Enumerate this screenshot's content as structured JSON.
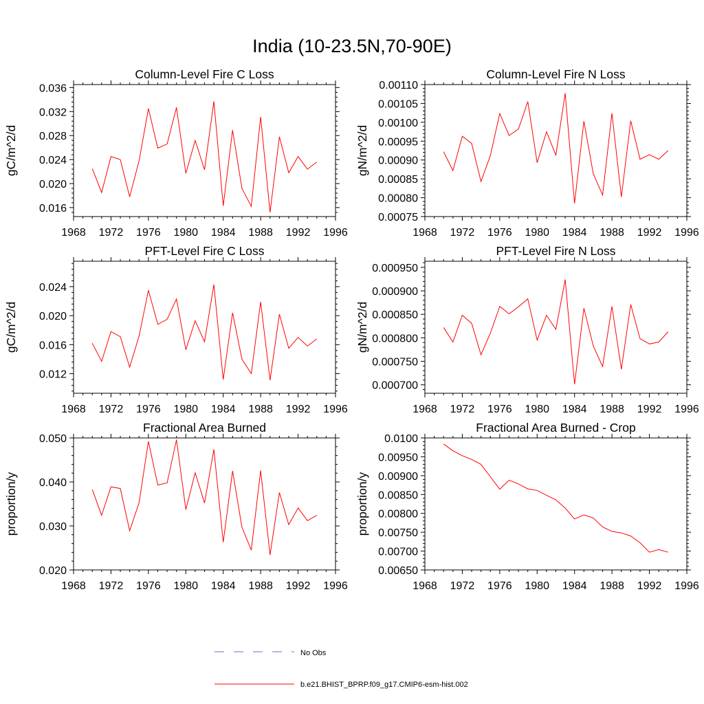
{
  "title": "India (10-23.5N,70-90E)",
  "legend": [
    {
      "label": "No Obs",
      "color": "#6b6bc9",
      "style": "dashed"
    },
    {
      "label": "b.e21.BHIST_BPRP.f09_g17.CMIP6-esm-hist.002",
      "color": "#ff0000",
      "style": "solid"
    }
  ],
  "chart_data": [
    {
      "type": "line",
      "title": "Column-Level Fire C Loss",
      "ylabel": "gC/m^2/d",
      "xlabel": "",
      "xlim": [
        1968,
        1996
      ],
      "ylim": [
        0.0145,
        0.0365
      ],
      "xticks": [
        1968,
        1972,
        1976,
        1980,
        1984,
        1988,
        1992,
        1996
      ],
      "xtick_labels": [
        "1968",
        "1972",
        "1976",
        "1980",
        "1984",
        "1988",
        "1992",
        "1996"
      ],
      "yticks": [
        0.016,
        0.02,
        0.024,
        0.028,
        0.032,
        0.036
      ],
      "ytick_labels": [
        "0.016",
        "0.020",
        "0.024",
        "0.028",
        "0.032",
        "0.036"
      ],
      "series": [
        {
          "name": "b.e21.BHIST_BPRP.f09_g17.CMIP6-esm-hist.002",
          "color": "#ff0000",
          "x": [
            1970,
            1971,
            1972,
            1973,
            1974,
            1975,
            1976,
            1977,
            1978,
            1979,
            1980,
            1981,
            1982,
            1983,
            1984,
            1985,
            1986,
            1987,
            1988,
            1989,
            1990,
            1991,
            1992,
            1993,
            1994
          ],
          "y": [
            0.0225,
            0.0185,
            0.0245,
            0.024,
            0.0178,
            0.0238,
            0.0325,
            0.0259,
            0.0266,
            0.0327,
            0.0217,
            0.0272,
            0.0223,
            0.0337,
            0.0163,
            0.0289,
            0.0192,
            0.0162,
            0.0311,
            0.0152,
            0.0278,
            0.0218,
            0.0245,
            0.0224,
            0.0236
          ]
        }
      ]
    },
    {
      "type": "line",
      "title": "Column-Level Fire N Loss",
      "ylabel": "gN/m^2/d",
      "xlabel": "",
      "xlim": [
        1968,
        1996
      ],
      "ylim": [
        0.00075,
        0.0011
      ],
      "xticks": [
        1968,
        1972,
        1976,
        1980,
        1984,
        1988,
        1992,
        1996
      ],
      "xtick_labels": [
        "1968",
        "1972",
        "1976",
        "1980",
        "1984",
        "1988",
        "1992",
        "1996"
      ],
      "yticks": [
        0.00075,
        0.0008,
        0.00085,
        0.0009,
        0.00095,
        0.001,
        0.00105,
        0.0011
      ],
      "ytick_labels": [
        "0.00075",
        "0.00080",
        "0.00085",
        "0.00090",
        "0.00095",
        "0.00100",
        "0.00105",
        "0.00110"
      ],
      "series": [
        {
          "name": "b.e21.BHIST_BPRP.f09_g17.CMIP6-esm-hist.002",
          "color": "#ff0000",
          "x": [
            1970,
            1971,
            1972,
            1973,
            1974,
            1975,
            1976,
            1977,
            1978,
            1979,
            1980,
            1981,
            1982,
            1983,
            1984,
            1985,
            1986,
            1987,
            1988,
            1989,
            1990,
            1991,
            1992,
            1993,
            1994
          ],
          "y": [
            0.000922,
            0.000872,
            0.000963,
            0.000944,
            0.000843,
            0.000912,
            0.001023,
            0.000965,
            0.000982,
            0.001055,
            0.000893,
            0.000975,
            0.000913,
            0.001077,
            0.000785,
            0.001003,
            0.000864,
            0.000807,
            0.001024,
            0.000802,
            0.001004,
            0.000902,
            0.000914,
            0.000902,
            0.000925
          ]
        }
      ]
    },
    {
      "type": "line",
      "title": "PFT-Level Fire C Loss",
      "ylabel": "gC/m^2/d",
      "xlabel": "",
      "xlim": [
        1968,
        1996
      ],
      "ylim": [
        0.0093,
        0.0275
      ],
      "xticks": [
        1968,
        1972,
        1976,
        1980,
        1984,
        1988,
        1992,
        1996
      ],
      "xtick_labels": [
        "1968",
        "1972",
        "1976",
        "1980",
        "1984",
        "1988",
        "1992",
        "1996"
      ],
      "yticks": [
        0.012,
        0.016,
        0.02,
        0.024
      ],
      "ytick_labels": [
        "0.012",
        "0.016",
        "0.020",
        "0.024"
      ],
      "series": [
        {
          "name": "b.e21.BHIST_BPRP.f09_g17.CMIP6-esm-hist.002",
          "color": "#ff0000",
          "x": [
            1970,
            1971,
            1972,
            1973,
            1974,
            1975,
            1976,
            1977,
            1978,
            1979,
            1980,
            1981,
            1982,
            1983,
            1984,
            1985,
            1986,
            1987,
            1988,
            1989,
            1990,
            1991,
            1992,
            1993,
            1994
          ],
          "y": [
            0.0162,
            0.0137,
            0.0178,
            0.0171,
            0.0129,
            0.0172,
            0.0235,
            0.0188,
            0.0195,
            0.0223,
            0.0153,
            0.0193,
            0.0164,
            0.0243,
            0.0112,
            0.0204,
            0.014,
            0.012,
            0.0219,
            0.0111,
            0.0202,
            0.0155,
            0.017,
            0.0158,
            0.0168
          ]
        }
      ]
    },
    {
      "type": "line",
      "title": "PFT-Level Fire N Loss",
      "ylabel": "gN/m^2/d",
      "xlabel": "",
      "xlim": [
        1968,
        1996
      ],
      "ylim": [
        0.000682,
        0.000963
      ],
      "xticks": [
        1968,
        1972,
        1976,
        1980,
        1984,
        1988,
        1992,
        1996
      ],
      "xtick_labels": [
        "1968",
        "1972",
        "1976",
        "1980",
        "1984",
        "1988",
        "1992",
        "1996"
      ],
      "yticks": [
        0.0007,
        0.00075,
        0.0008,
        0.00085,
        0.0009,
        0.00095
      ],
      "ytick_labels": [
        "0.000700",
        "0.000750",
        "0.000800",
        "0.000850",
        "0.000900",
        "0.000950"
      ],
      "series": [
        {
          "name": "b.e21.BHIST_BPRP.f09_g17.CMIP6-esm-hist.002",
          "color": "#ff0000",
          "x": [
            1970,
            1971,
            1972,
            1973,
            1974,
            1975,
            1976,
            1977,
            1978,
            1979,
            1980,
            1981,
            1982,
            1983,
            1984,
            1985,
            1986,
            1987,
            1988,
            1989,
            1990,
            1991,
            1992,
            1993,
            1994
          ],
          "y": [
            0.000822,
            0.000791,
            0.000848,
            0.000831,
            0.000764,
            0.00081,
            0.000867,
            0.000851,
            0.000866,
            0.000883,
            0.000795,
            0.000848,
            0.000818,
            0.000924,
            0.000701,
            0.000863,
            0.000783,
            0.000739,
            0.000867,
            0.000733,
            0.000871,
            0.000798,
            0.000787,
            0.000791,
            0.000813
          ]
        }
      ]
    },
    {
      "type": "line",
      "title": "Fractional Area Burned",
      "ylabel": "proportion/y",
      "xlabel": "",
      "xlim": [
        1968,
        1996
      ],
      "ylim": [
        0.02,
        0.05
      ],
      "xticks": [
        1968,
        1972,
        1976,
        1980,
        1984,
        1988,
        1992,
        1996
      ],
      "xtick_labels": [
        "1968",
        "1972",
        "1976",
        "1980",
        "1984",
        "1988",
        "1992",
        "1996"
      ],
      "yticks": [
        0.02,
        0.03,
        0.04,
        0.05
      ],
      "ytick_labels": [
        "0.020",
        "0.030",
        "0.040",
        "0.050"
      ],
      "series": [
        {
          "name": "b.e21.BHIST_BPRP.f09_g17.CMIP6-esm-hist.002",
          "color": "#ff0000",
          "x": [
            1970,
            1971,
            1972,
            1973,
            1974,
            1975,
            1976,
            1977,
            1978,
            1979,
            1980,
            1981,
            1982,
            1983,
            1984,
            1985,
            1986,
            1987,
            1988,
            1989,
            1990,
            1991,
            1992,
            1993,
            1994
          ],
          "y": [
            0.0383,
            0.0324,
            0.0389,
            0.0385,
            0.0289,
            0.0353,
            0.0492,
            0.0393,
            0.0398,
            0.0496,
            0.0337,
            0.0421,
            0.0352,
            0.0474,
            0.0263,
            0.0425,
            0.0297,
            0.0245,
            0.0426,
            0.0234,
            0.0376,
            0.0303,
            0.0341,
            0.0312,
            0.0324
          ]
        }
      ]
    },
    {
      "type": "line",
      "title": "Fractional Area Burned - Crop",
      "ylabel": "proportion/y",
      "xlabel": "",
      "xlim": [
        1968,
        1996
      ],
      "ylim": [
        0.0065,
        0.01
      ],
      "xticks": [
        1968,
        1972,
        1976,
        1980,
        1984,
        1988,
        1992,
        1996
      ],
      "xtick_labels": [
        "1968",
        "1972",
        "1976",
        "1980",
        "1984",
        "1988",
        "1992",
        "1996"
      ],
      "yticks": [
        0.0065,
        0.007,
        0.0075,
        0.008,
        0.0085,
        0.009,
        0.0095,
        0.01
      ],
      "ytick_labels": [
        "0.00650",
        "0.00700",
        "0.00750",
        "0.00800",
        "0.00850",
        "0.00900",
        "0.00950",
        "0.0100"
      ],
      "series": [
        {
          "name": "b.e21.BHIST_BPRP.f09_g17.CMIP6-esm-hist.002",
          "color": "#ff0000",
          "x": [
            1970,
            1971,
            1972,
            1973,
            1974,
            1975,
            1976,
            1977,
            1978,
            1979,
            1980,
            1981,
            1982,
            1983,
            1984,
            1985,
            1986,
            1987,
            1988,
            1989,
            1990,
            1991,
            1992,
            1993,
            1994
          ],
          "y": [
            0.00984,
            0.00966,
            0.00953,
            0.00943,
            0.0093,
            0.00897,
            0.00864,
            0.00888,
            0.00878,
            0.00865,
            0.00861,
            0.00848,
            0.00836,
            0.00814,
            0.00785,
            0.00796,
            0.00788,
            0.00764,
            0.00752,
            0.00748,
            0.0074,
            0.00722,
            0.00697,
            0.00704,
            0.00697
          ]
        }
      ]
    }
  ]
}
